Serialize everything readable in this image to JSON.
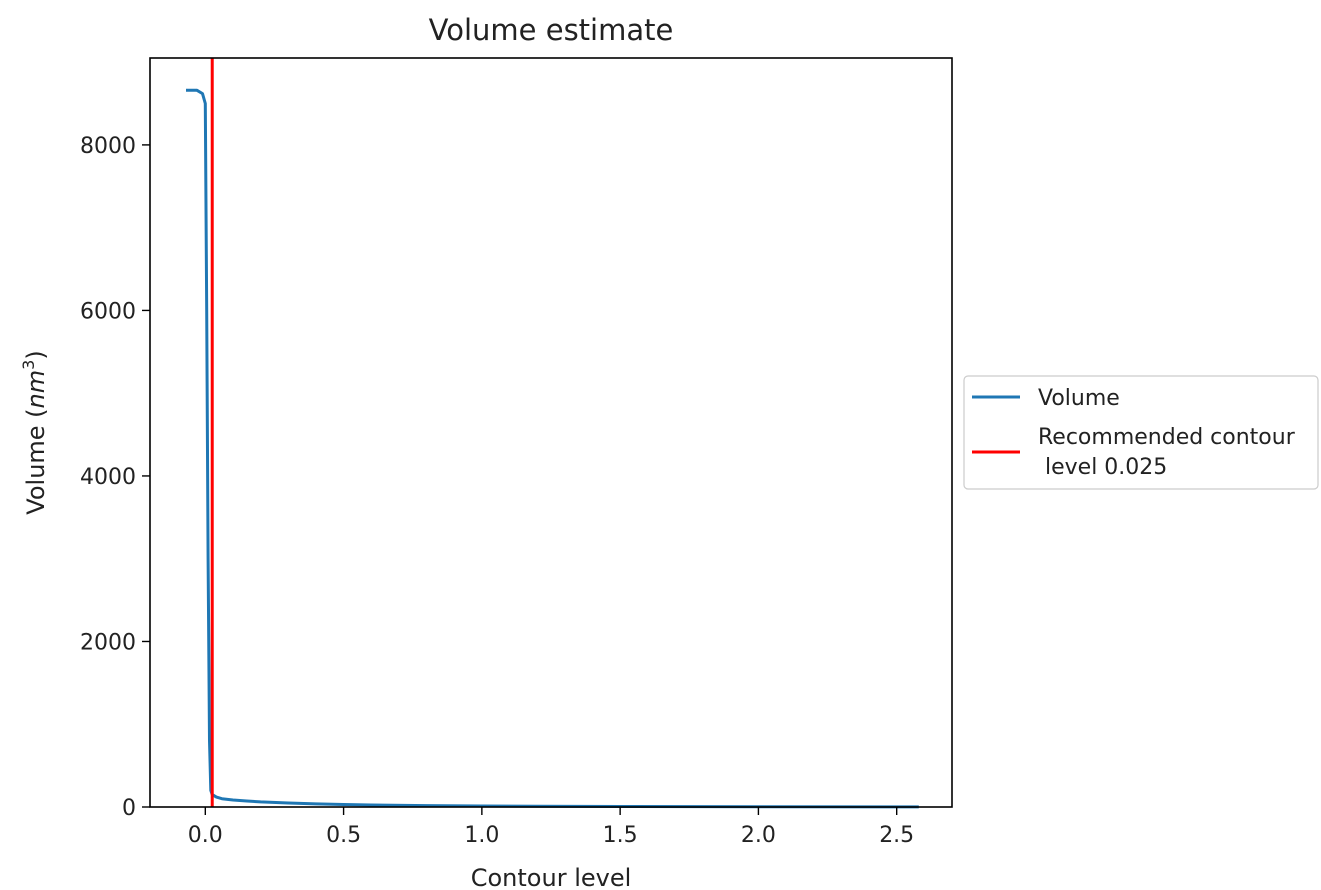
{
  "chart_data": {
    "type": "line",
    "title": "Volume estimate",
    "xlabel": "Contour level",
    "ylabel": {
      "base": "Volume (",
      "unit": "nm",
      "exponent": "3",
      "close": ")"
    },
    "xlim": [
      -0.2,
      2.7
    ],
    "ylim": [
      0,
      9050
    ],
    "xticks": [
      0.0,
      0.5,
      1.0,
      1.5,
      2.0,
      2.5
    ],
    "xtick_labels": [
      "0.0",
      "0.5",
      "1.0",
      "1.5",
      "2.0",
      "2.5"
    ],
    "yticks": [
      0,
      2000,
      4000,
      6000,
      8000
    ],
    "ytick_labels": [
      "0",
      "2000",
      "4000",
      "6000",
      "8000"
    ],
    "grid": false,
    "legend_position": "outside right",
    "series": [
      {
        "name": "Volume",
        "color": "#1f77b4",
        "x": [
          -0.07,
          -0.03,
          -0.01,
          0.0,
          0.005,
          0.01,
          0.015,
          0.02,
          0.025,
          0.04,
          0.06,
          0.1,
          0.15,
          0.2,
          0.3,
          0.4,
          0.5,
          0.6,
          0.8,
          1.0,
          1.2,
          1.5,
          2.0,
          2.58
        ],
        "y": [
          8660,
          8660,
          8620,
          8500,
          6000,
          3000,
          800,
          200,
          150,
          120,
          100,
          85,
          72,
          62,
          48,
          38,
          30,
          24,
          17,
          12,
          9,
          6,
          3,
          1
        ]
      }
    ],
    "reference_line": {
      "name": "Recommended contour\n level 0.025",
      "legend_lines": [
        "Recommended contour",
        " level 0.025"
      ],
      "x": 0.025,
      "color": "#ff0000"
    }
  }
}
